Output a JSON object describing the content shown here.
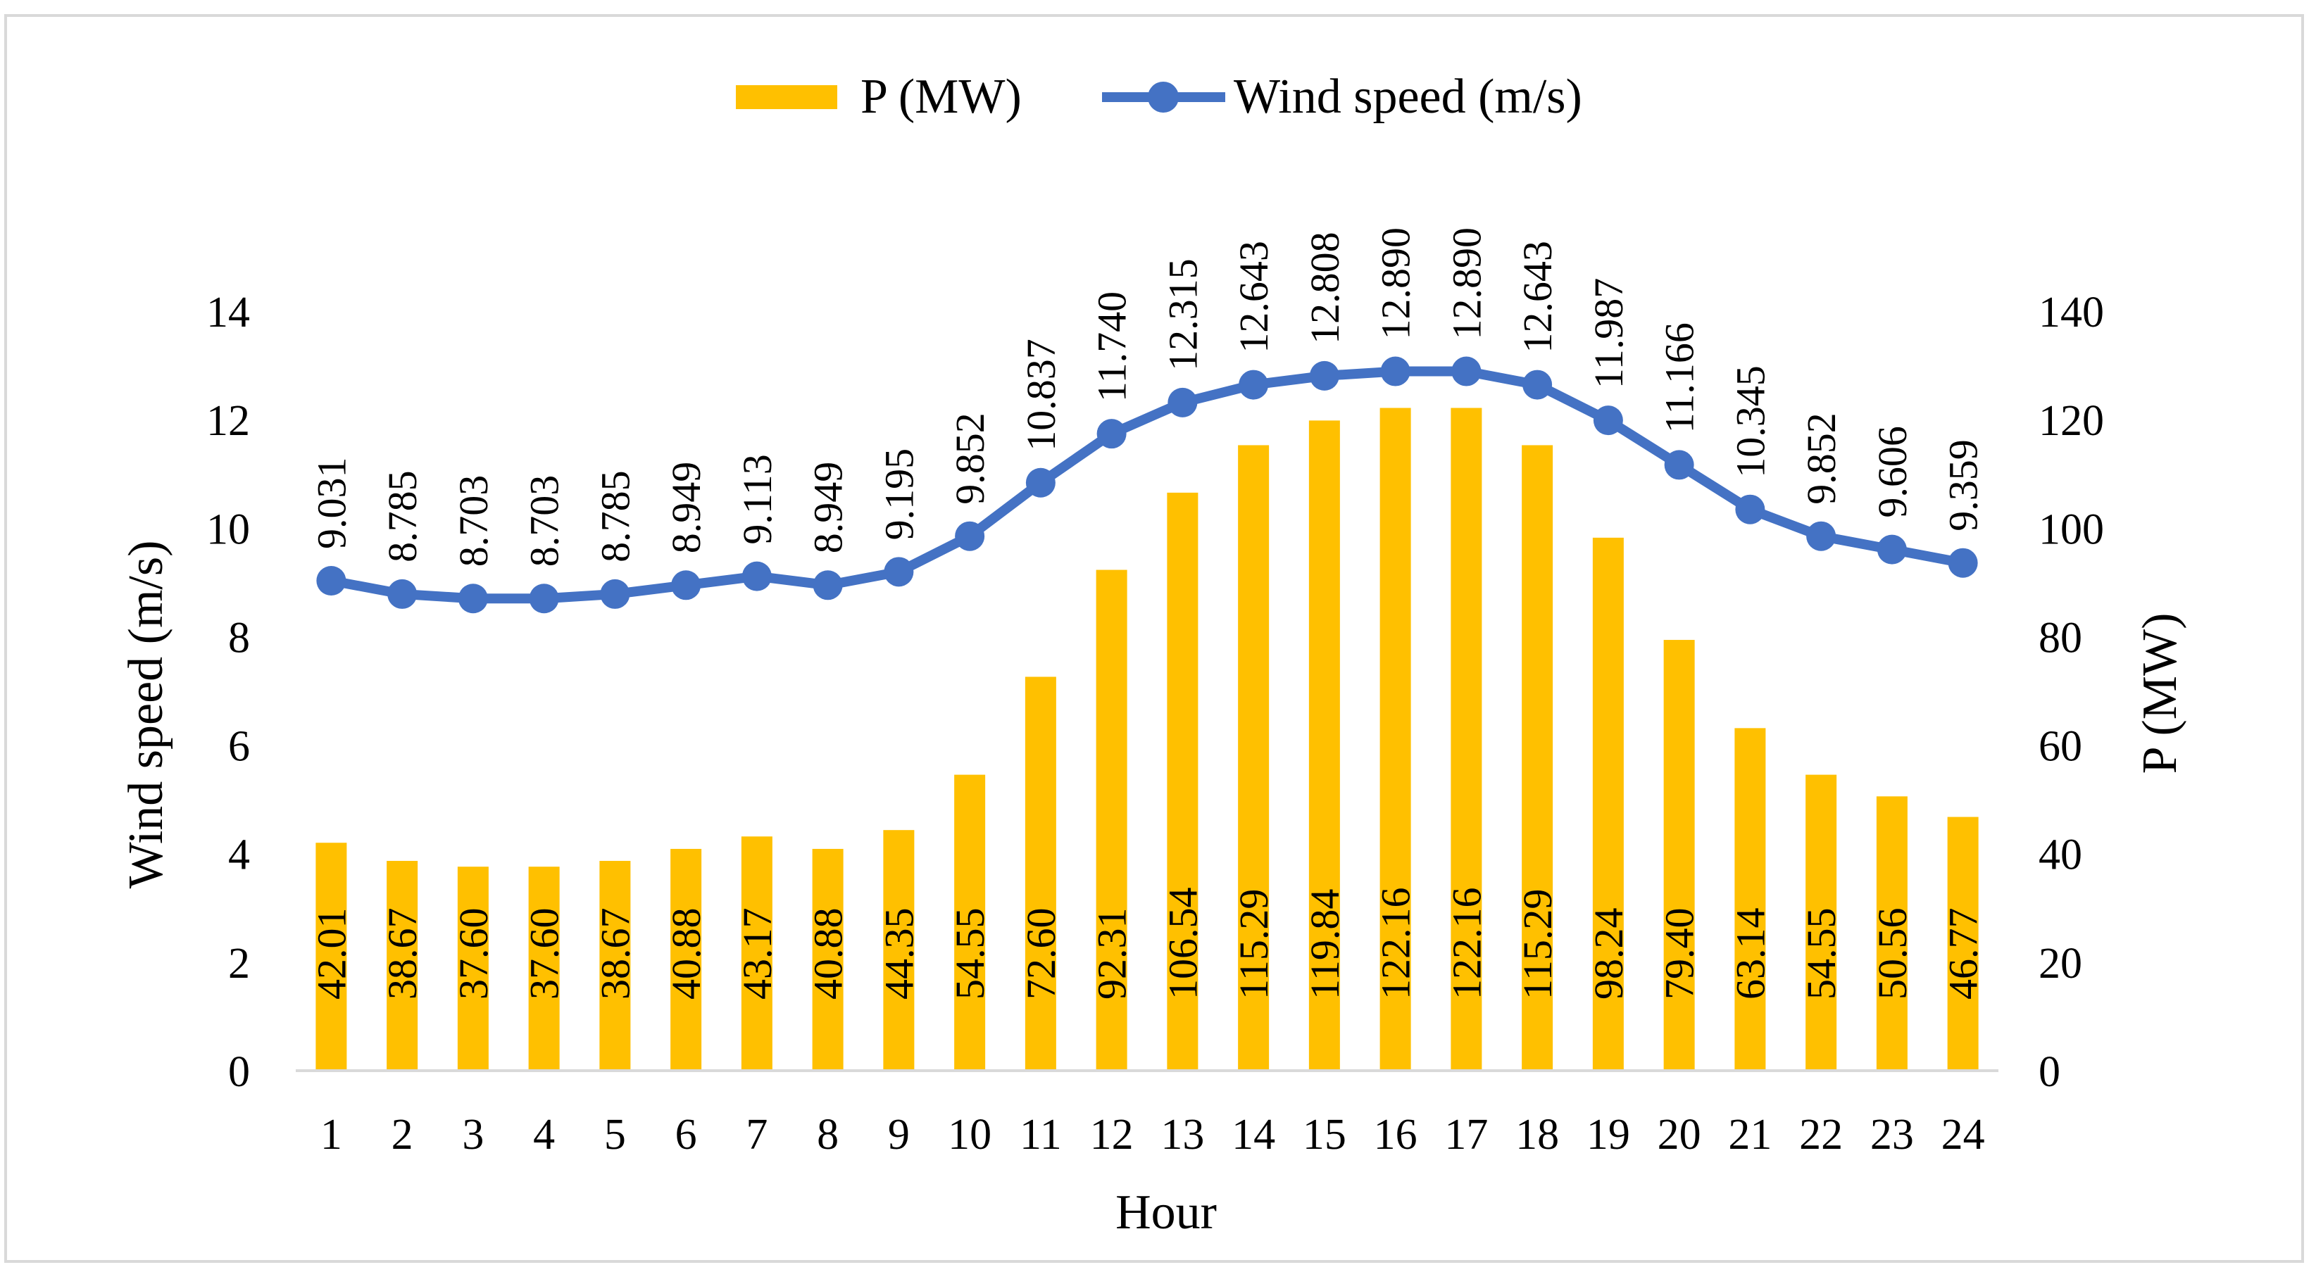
{
  "chart_data": {
    "type": "bar+line",
    "title": "",
    "xlabel": "Hour",
    "ylabel_left": "Wind speed (m/s)",
    "ylabel_right": "P (MW)",
    "ylim_left": [
      0,
      14
    ],
    "ylim_right": [
      0,
      140
    ],
    "yticks_left": [
      "0",
      "2",
      "4",
      "6",
      "8",
      "10",
      "12",
      "14"
    ],
    "yticks_right": [
      "0",
      "20",
      "40",
      "60",
      "80",
      "100",
      "120",
      "140"
    ],
    "legend_position": "top-center",
    "grid": false,
    "categories": [
      "1",
      "2",
      "3",
      "4",
      "5",
      "6",
      "7",
      "8",
      "9",
      "10",
      "11",
      "12",
      "13",
      "14",
      "15",
      "16",
      "17",
      "18",
      "19",
      "20",
      "21",
      "22",
      "23",
      "24"
    ],
    "series": [
      {
        "name": "P (MW)",
        "kind": "bar",
        "axis": "right",
        "color": "#FFC000",
        "values": [
          42.01,
          38.67,
          37.6,
          37.6,
          38.67,
          40.88,
          43.17,
          40.88,
          44.35,
          54.55,
          72.6,
          92.31,
          106.54,
          115.29,
          119.84,
          122.16,
          122.16,
          115.29,
          98.24,
          79.4,
          63.14,
          54.55,
          50.56,
          46.77
        ],
        "labels": [
          "42.01",
          "38.67",
          "37.60",
          "37.60",
          "38.67",
          "40.88",
          "43.17",
          "40.88",
          "44.35",
          "54.55",
          "72.60",
          "92.31",
          "106.54",
          "115.29",
          "119.84",
          "122.16",
          "122.16",
          "115.29",
          "98.24",
          "79.40",
          "63.14",
          "54.55",
          "50.56",
          "46.77"
        ]
      },
      {
        "name": "Wind speed (m/s)",
        "kind": "line",
        "axis": "left",
        "color": "#4472C4",
        "values": [
          9.031,
          8.785,
          8.703,
          8.703,
          8.785,
          8.949,
          9.113,
          8.949,
          9.195,
          9.852,
          10.837,
          11.74,
          12.315,
          12.643,
          12.808,
          12.89,
          12.89,
          12.643,
          11.987,
          11.166,
          10.345,
          9.852,
          9.606,
          9.359
        ],
        "labels": [
          "9.031",
          "8.785",
          "8.703",
          "8.703",
          "8.785",
          "8.949",
          "9.113",
          "8.949",
          "9.195",
          "9.852",
          "10.837",
          "11.740",
          "12.315",
          "12.643",
          "12.808",
          "12.890",
          "12.890",
          "12.643",
          "11.987",
          "11.166",
          "10.345",
          "9.852",
          "9.606",
          "9.359"
        ]
      }
    ]
  }
}
